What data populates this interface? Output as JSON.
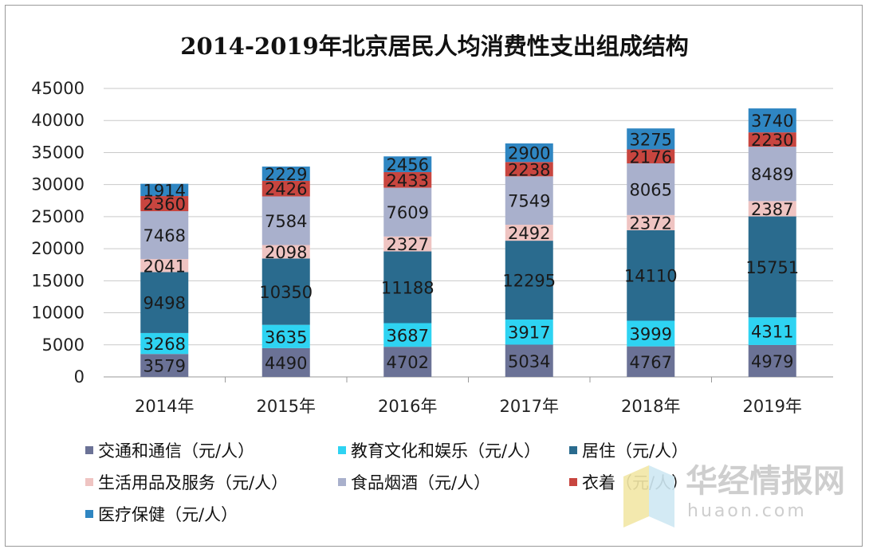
{
  "chart_data": {
    "type": "bar",
    "stacked": true,
    "title": "2014-2019年北京居民人均消费性支出组成结构",
    "xlabel": "",
    "ylabel": "",
    "categories": [
      "2014年",
      "2015年",
      "2016年",
      "2017年",
      "2018年",
      "2019年"
    ],
    "ylim": [
      0,
      45000
    ],
    "yticks": [
      0,
      5000,
      10000,
      15000,
      20000,
      25000,
      30000,
      35000,
      40000,
      45000
    ],
    "grid": true,
    "legend_position": "bottom",
    "series": [
      {
        "name": "交通和通信（元/人）",
        "color": "#6b7296",
        "values": [
          3579,
          4490,
          4702,
          5034,
          4767,
          4979
        ]
      },
      {
        "name": "教育文化和娱乐（元/人）",
        "color": "#2ed3f2",
        "values": [
          3268,
          3635,
          3687,
          3917,
          3999,
          4311
        ]
      },
      {
        "name": "居住（元/人）",
        "color": "#2a6b8e",
        "values": [
          9498,
          10350,
          11188,
          12295,
          14110,
          15751
        ]
      },
      {
        "name": "生活用品及服务（元/人）",
        "color": "#efc4c2",
        "values": [
          2041,
          2098,
          2327,
          2492,
          2372,
          2387
        ]
      },
      {
        "name": "食品烟酒（元/人）",
        "color": "#a9b0cc",
        "values": [
          7468,
          7584,
          7609,
          7549,
          8065,
          8489
        ]
      },
      {
        "name": "衣着（元/人）",
        "color": "#c8453f",
        "values": [
          2360,
          2426,
          2433,
          2238,
          2176,
          2230
        ]
      },
      {
        "name": "医疗保健（元/人）",
        "color": "#2f86c2",
        "values": [
          1914,
          2229,
          2456,
          2900,
          3275,
          3740
        ]
      }
    ]
  },
  "watermark": {
    "text_cn": "华经情报网",
    "text_en": "huaon.com"
  }
}
